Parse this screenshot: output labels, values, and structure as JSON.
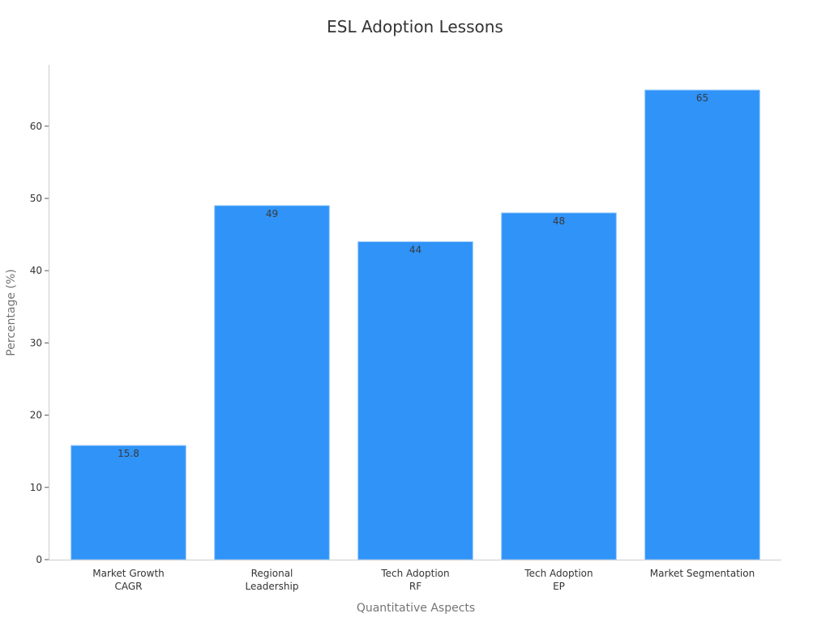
{
  "chart_data": {
    "type": "bar",
    "title": "ESL Adoption Lessons",
    "xlabel": "Quantitative Aspects",
    "ylabel": "Percentage (%)",
    "categories": [
      [
        "Market Growth",
        "CAGR"
      ],
      [
        "Regional",
        "Leadership"
      ],
      [
        "Tech Adoption",
        "RF"
      ],
      [
        "Tech Adoption",
        "EP"
      ],
      [
        "Market Segmentation"
      ]
    ],
    "values": [
      15.8,
      49,
      44,
      48,
      65
    ],
    "data_labels": [
      "15.8",
      "49",
      "44",
      "48",
      "65"
    ],
    "yticks": [
      0,
      10,
      20,
      30,
      40,
      50,
      60
    ],
    "ylim": [
      0,
      68.5
    ],
    "grid": false,
    "legend": "none",
    "bar_color": "#2f93f8",
    "bar_edge_color": "#8ec4fb"
  }
}
